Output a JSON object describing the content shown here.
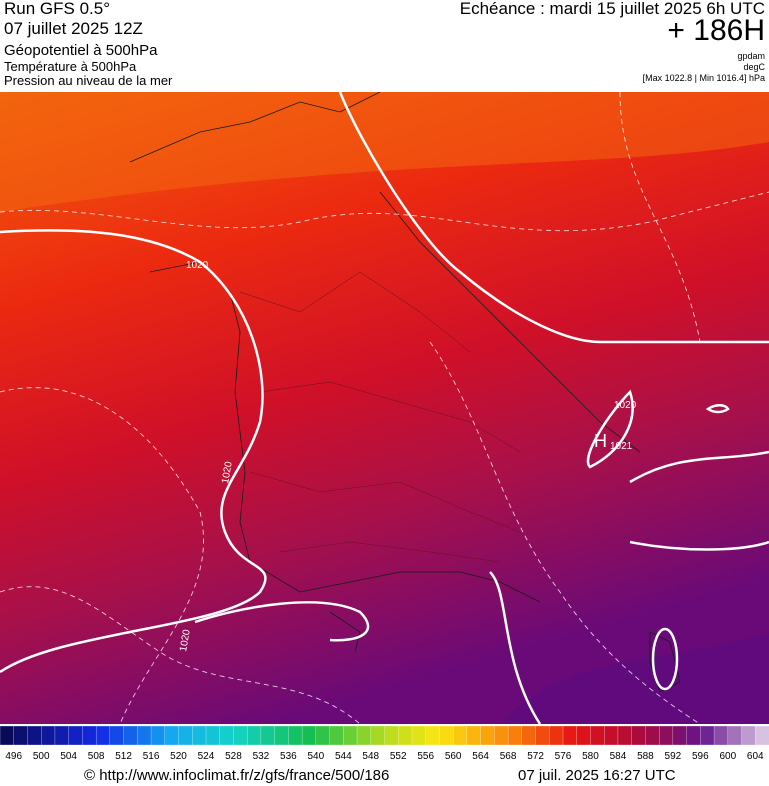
{
  "header": {
    "run": "Run GFS 0.5°",
    "date": "07 juillet 2025 12Z",
    "field1": "Géopotentiel à 500hPa",
    "field2": "Température à 500hPa",
    "field3": "Pression au niveau de la mer",
    "valid": "Echéance : mardi 15 juillet 2025 6h UTC",
    "lead": "+ 186H",
    "unit1": "gpdam",
    "unit2": "degC",
    "range": "[Max 1022.8 | Min 1016.4] hPa"
  },
  "map_labels": {
    "isobar_nw": "1020",
    "isobar_w": "1020",
    "isobar_sw": "1020",
    "isobar_e": "1020",
    "isobar_h": "1021",
    "high": "H"
  },
  "scale": {
    "labels": [
      496,
      500,
      504,
      508,
      512,
      516,
      520,
      524,
      528,
      532,
      536,
      540,
      544,
      548,
      552,
      556,
      560,
      564,
      568,
      572,
      576,
      580,
      584,
      588,
      592,
      596,
      600,
      604
    ]
  },
  "footer": {
    "url": "© http://www.infoclimat.fr/z/gfs/france/500/186",
    "stamp": "07 juil. 2025 16:27 UTC"
  }
}
